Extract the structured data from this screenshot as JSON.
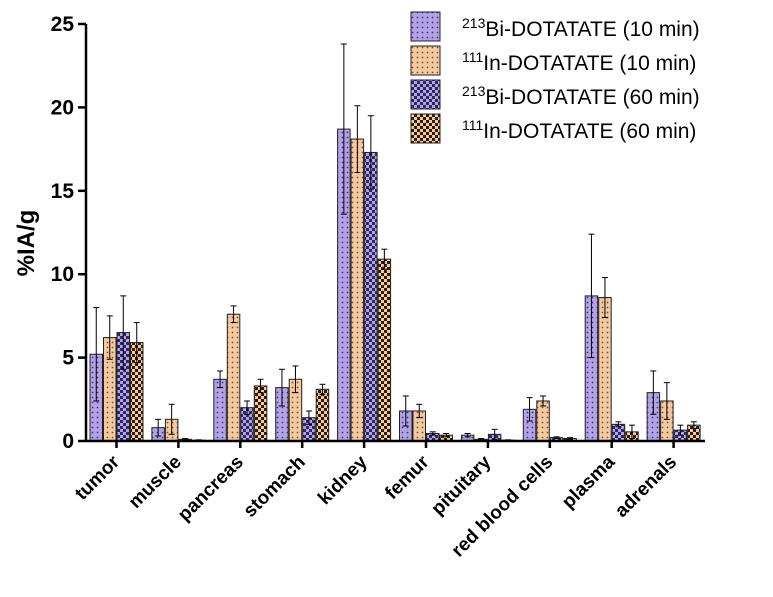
{
  "chart_data": {
    "type": "bar",
    "ylabel": "%IA/g",
    "ylim": [
      0,
      25
    ],
    "yticks": [
      0,
      5,
      10,
      15,
      20,
      25
    ],
    "grid": false,
    "legend_position": "top-right",
    "categories": [
      "tumor",
      "muscle",
      "pancreas",
      "stomach",
      "kidney",
      "femur",
      "pituitary",
      "red blood cells",
      "plasma",
      "adrenals"
    ],
    "series": [
      {
        "name": "213Bi-DOTATATE (10 min)",
        "legend_sup": "213",
        "legend_rest": "Bi-DOTATATE (10 min)",
        "color": "#b3a3e6",
        "pattern": "dots",
        "values": [
          5.2,
          0.8,
          3.7,
          3.2,
          18.7,
          1.8,
          0.35,
          1.9,
          8.7,
          2.9
        ],
        "errors": [
          2.8,
          0.5,
          0.5,
          1.1,
          5.1,
          0.9,
          0.1,
          0.7,
          3.7,
          1.3
        ]
      },
      {
        "name": "111In-DOTATATE (10 min)",
        "legend_sup": "111",
        "legend_rest": "In-DOTATATE (10 min)",
        "color": "#f5c9a0",
        "pattern": "dots",
        "values": [
          6.2,
          1.3,
          7.6,
          3.7,
          18.1,
          1.8,
          0.1,
          2.4,
          8.6,
          2.4
        ],
        "errors": [
          1.3,
          0.9,
          0.5,
          0.8,
          2.0,
          0.4,
          0.05,
          0.3,
          1.2,
          1.1
        ]
      },
      {
        "name": "213Bi-DOTATATE (60 min)",
        "legend_sup": "213",
        "legend_rest": "Bi-DOTATATE (60 min)",
        "color": "#b3a3e6",
        "dark": "#3d3480",
        "pattern": "checker",
        "values": [
          6.5,
          0.1,
          2.0,
          1.4,
          17.3,
          0.45,
          0.4,
          0.2,
          1.0,
          0.65
        ],
        "errors": [
          2.2,
          0.05,
          0.4,
          0.4,
          2.2,
          0.1,
          0.3,
          0.05,
          0.15,
          0.3
        ]
      },
      {
        "name": "111In-DOTATATE (60 min)",
        "legend_sup": "111",
        "legend_rest": "In-DOTATATE (60 min)",
        "color": "#f5c9a0",
        "dark": "#2b1d10",
        "pattern": "checker",
        "values": [
          5.9,
          0.05,
          3.3,
          3.1,
          10.9,
          0.35,
          0.05,
          0.15,
          0.55,
          0.95
        ],
        "errors": [
          1.2,
          0.02,
          0.4,
          0.3,
          0.6,
          0.1,
          0.02,
          0.05,
          0.4,
          0.2
        ]
      }
    ]
  }
}
